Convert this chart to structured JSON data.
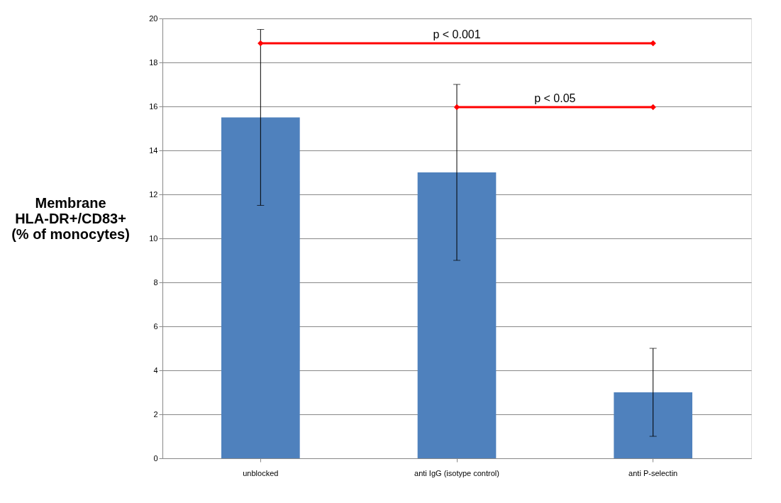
{
  "chart_data": {
    "type": "bar",
    "ylabel": "Membrane\nHLA-DR+/CD83+\n(% of monocytes)",
    "categories": [
      "unblocked",
      "anti IgG (isotype control)",
      "anti P-selectin"
    ],
    "values": [
      15.5,
      13,
      3
    ],
    "color": "#4f81bd",
    "errors": [
      4,
      4,
      2
    ],
    "ylim": [
      0,
      20
    ],
    "yticks": [
      0,
      2,
      4,
      6,
      8,
      10,
      12,
      14,
      16,
      18,
      20
    ],
    "grid": "y",
    "annotations": [
      "p < 0.001",
      "p < 0.05"
    ]
  }
}
